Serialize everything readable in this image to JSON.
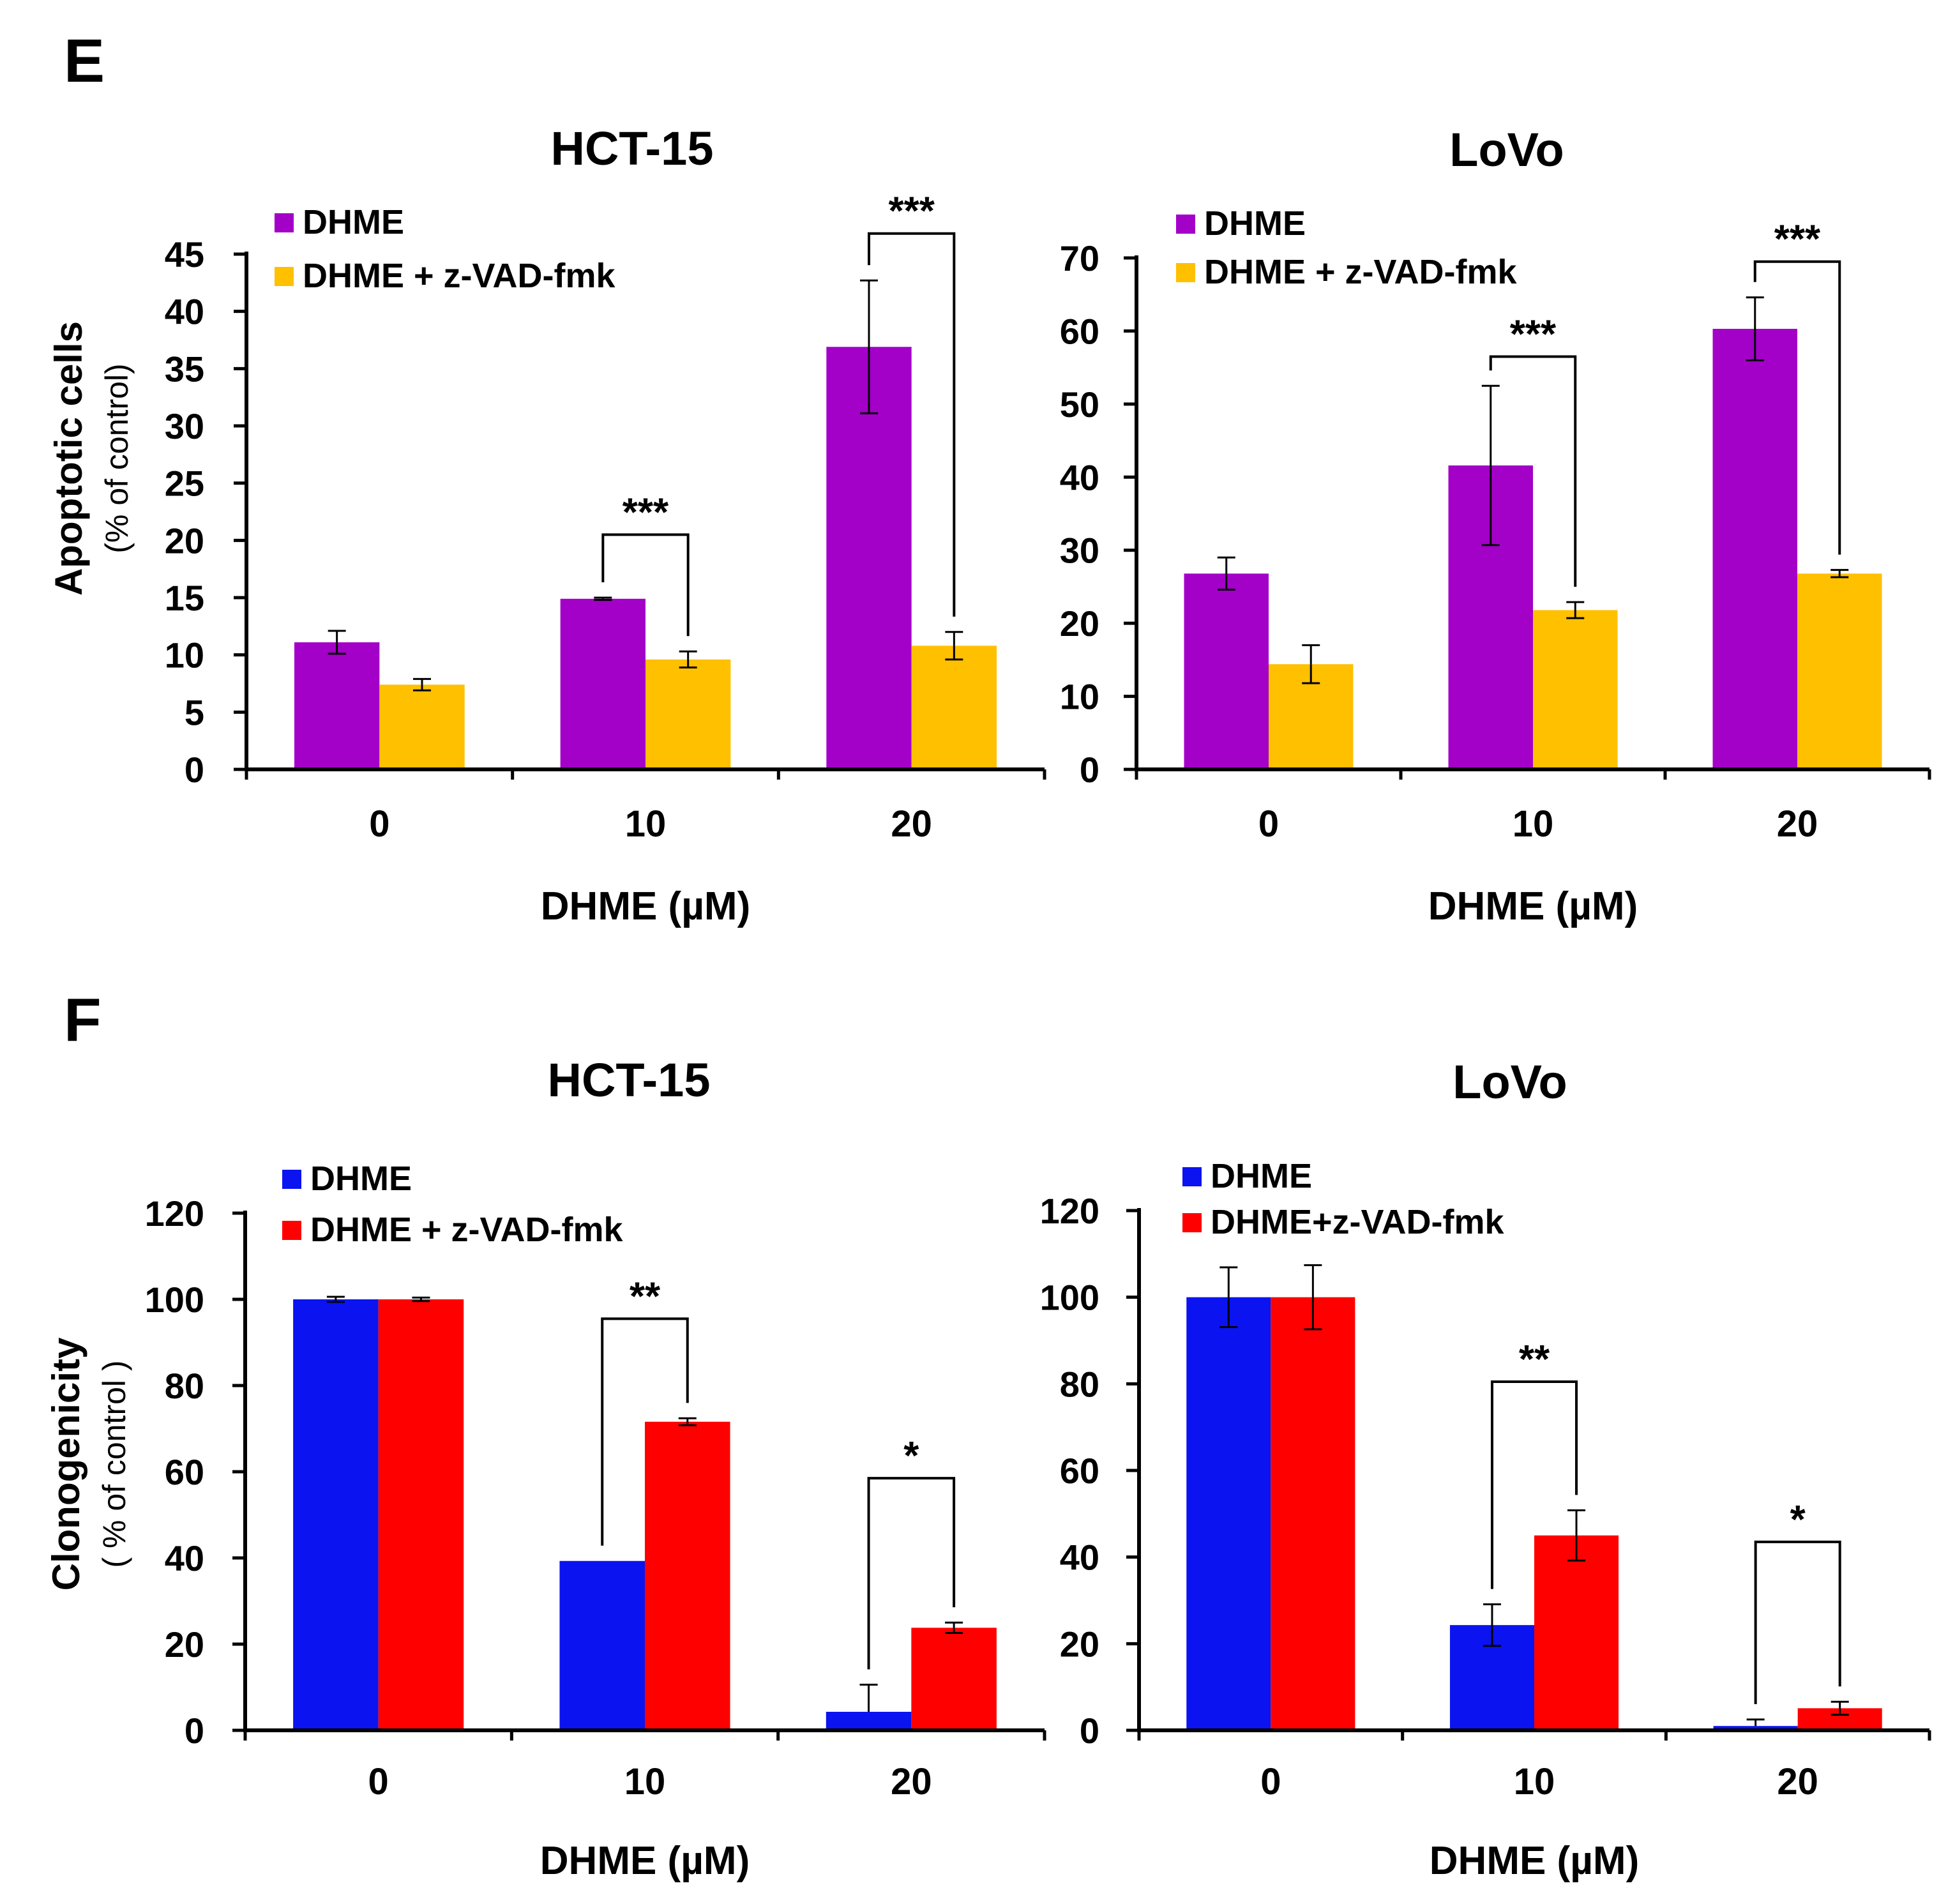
{
  "panels": [
    {
      "letter": "E",
      "ylabel": "Apoptotic cells",
      "ylabel_sub": "(% of control)"
    },
    {
      "letter": "F",
      "ylabel": "Clonogenicity",
      "ylabel_sub": "( % of control )"
    }
  ],
  "chart_data": [
    {
      "type": "bar",
      "title": "HCT-15",
      "panel": "E",
      "categories": [
        "0",
        "10",
        "20"
      ],
      "xlabel": "DHME (µM)",
      "ylabel": "Apoptotic cells (% of control)",
      "ylim": [
        0,
        45
      ],
      "yticks": [
        0,
        5,
        10,
        15,
        20,
        25,
        30,
        35,
        40,
        45
      ],
      "legend_position": "top-left",
      "series": [
        {
          "name": "DHME",
          "color": "#a300c8",
          "values": [
            11.1,
            14.9,
            36.9
          ],
          "errors": [
            1.0,
            0.1,
            5.8
          ]
        },
        {
          "name": "DHME + z-VAD-fmk",
          "color": "#ffc000",
          "values": [
            7.4,
            9.6,
            10.8
          ],
          "errors": [
            0.5,
            0.7,
            1.2
          ]
        }
      ],
      "significance": [
        {
          "category": 1,
          "label": "***",
          "bracket_top": 20.5
        },
        {
          "category": 2,
          "label": "***",
          "bracket_top": 46.8
        }
      ]
    },
    {
      "type": "bar",
      "title": "LoVo",
      "panel": "E",
      "categories": [
        "0",
        "10",
        "20"
      ],
      "xlabel": "DHME (µM)",
      "ylabel": "",
      "ylim": [
        0,
        70
      ],
      "yticks": [
        0,
        10,
        20,
        30,
        40,
        50,
        60,
        70
      ],
      "legend_position": "top-left",
      "series": [
        {
          "name": "DHME",
          "color": "#a300c8",
          "values": [
            26.8,
            41.6,
            60.3
          ],
          "errors": [
            2.2,
            10.9,
            4.3
          ]
        },
        {
          "name": "DHME + z-VAD-fmk",
          "color": "#ffc000",
          "values": [
            14.4,
            21.8,
            26.8
          ],
          "errors": [
            2.6,
            1.1,
            0.5
          ]
        }
      ],
      "significance": [
        {
          "category": 1,
          "label": "***",
          "bracket_top": 56.5
        },
        {
          "category": 2,
          "label": "***",
          "bracket_top": 69.5
        }
      ]
    },
    {
      "type": "bar",
      "title": "HCT-15",
      "panel": "F",
      "categories": [
        "0",
        "10",
        "20"
      ],
      "xlabel": "DHME (µM)",
      "ylabel": "Clonogenicity ( % of control )",
      "ylim": [
        0,
        120
      ],
      "yticks": [
        0,
        20,
        40,
        60,
        80,
        100,
        120
      ],
      "legend_position": "top-left",
      "series": [
        {
          "name": "DHME",
          "color": "#0b13f0",
          "values": [
            100,
            39.3,
            4.3
          ],
          "errors": [
            0.6,
            0.0,
            6.3
          ]
        },
        {
          "name": "DHME + z-VAD-fmk",
          "color": "#ff0000",
          "values": [
            100,
            71.6,
            23.8
          ],
          "errors": [
            0.4,
            0.8,
            1.2
          ]
        }
      ],
      "significance": [
        {
          "category": 1,
          "label": "**",
          "bracket_top": 95.5
        },
        {
          "category": 2,
          "label": "*",
          "bracket_top": 58.5
        }
      ]
    },
    {
      "type": "bar",
      "title": "LoVo",
      "panel": "F",
      "categories": [
        "0",
        "10",
        "20"
      ],
      "xlabel": "DHME (µM)",
      "ylabel": "",
      "ylim": [
        0,
        120
      ],
      "yticks": [
        0,
        20,
        40,
        60,
        80,
        100,
        120
      ],
      "legend_position": "top-left",
      "series": [
        {
          "name": "DHME",
          "color": "#0b13f0",
          "values": [
            100,
            24.3,
            1.0
          ],
          "errors": [
            6.9,
            4.8,
            1.5
          ]
        },
        {
          "name": "DHME+z-VAD-fmk",
          "color": "#ff0000",
          "values": [
            100,
            45.0,
            5.1
          ],
          "errors": [
            7.4,
            5.8,
            1.5
          ]
        }
      ],
      "significance": [
        {
          "category": 1,
          "label": "**",
          "bracket_top": 80.5
        },
        {
          "category": 2,
          "label": "*",
          "bracket_top": 43.5
        }
      ]
    }
  ]
}
